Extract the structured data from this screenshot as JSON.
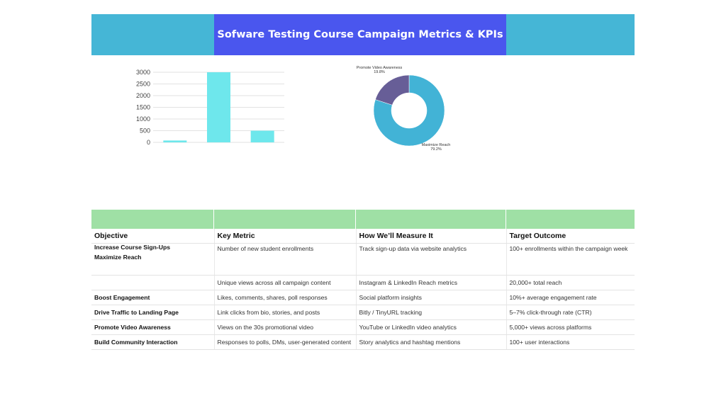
{
  "title": "Sofware Testing Course Campaign Metrics & KPIs",
  "colors": {
    "banner_side": "#45b6d6",
    "banner_center": "#4a56ee",
    "table_header": "#9fe0a5",
    "bar_fill": "#6ee7ec",
    "donut_primary": "#42b3d6",
    "donut_secondary": "#675e97"
  },
  "chart_data": [
    {
      "type": "bar",
      "categories": [
        "",
        "",
        ""
      ],
      "values": [
        80,
        3000,
        500
      ],
      "title": "",
      "xlabel": "",
      "ylabel": "",
      "ylim": [
        0,
        3000
      ],
      "yticks": [
        "3000",
        "2500",
        "2000",
        "1500",
        "1000",
        "500",
        "0"
      ],
      "grid": true
    },
    {
      "type": "pie",
      "donut": true,
      "slices": [
        {
          "label": "Maximize Reach",
          "pct_label": "79.2%",
          "value": 79.2
        },
        {
          "label": "Promote Video Awareness",
          "pct_label": "19.8%",
          "value": 19.8
        }
      ]
    }
  ],
  "table": {
    "headers": [
      "Objective",
      "Key Metric",
      "How We’ll Measure It",
      "Target Outcome"
    ],
    "rows": [
      {
        "objective": "Increase Course Sign-Ups",
        "objective2": "Maximize Reach",
        "metric": "Number of new student enrollments",
        "measure": "Track sign-up data via website analytics",
        "target": "100+ enrollments within the campaign week"
      },
      {
        "objective": "",
        "metric": "Unique views across all campaign content",
        "measure": "Instagram & LinkedIn Reach metrics",
        "target": "20,000+ total reach"
      },
      {
        "objective": "Boost Engagement",
        "metric": "Likes, comments, shares, poll responses",
        "measure": "Social platform insights",
        "target": "10%+ average engagement rate"
      },
      {
        "objective": "Drive Traffic to Landing Page",
        "metric": "Link clicks from bio, stories, and posts",
        "measure": "Bitly / TinyURL tracking",
        "target": "5–7% click-through rate (CTR)"
      },
      {
        "objective": "Promote Video Awareness",
        "metric": "Views on the 30s promotional video",
        "measure": "YouTube or LinkedIn video analytics",
        "target": "5,000+ views across platforms"
      },
      {
        "objective": "Build Community Interaction",
        "metric": "Responses to polls, DMs, user-generated content",
        "measure": "Story analytics and hashtag mentions",
        "target": "100+ user interactions"
      }
    ]
  }
}
